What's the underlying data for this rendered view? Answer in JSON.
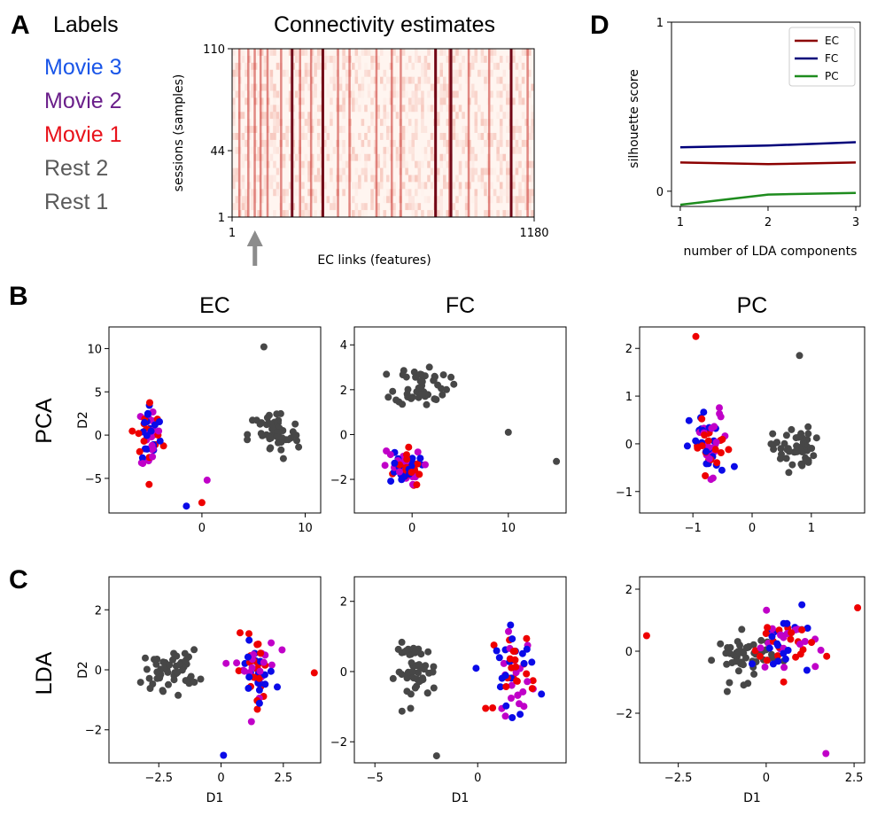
{
  "panel_letters": {
    "a": "A",
    "b": "B",
    "c": "C",
    "d": "D"
  },
  "labels_panel": {
    "title": "Labels",
    "items": [
      {
        "text": "Movie 3",
        "color": "#1a56e8"
      },
      {
        "text": "Movie 2",
        "color": "#6a1f8a"
      },
      {
        "text": "Movie 1",
        "color": "#e8121b"
      },
      {
        "text": "Rest 2",
        "color": "#5a5a5a"
      },
      {
        "text": "Rest 1",
        "color": "#5a5a5a"
      }
    ]
  },
  "row_labels": {
    "pca": "PCA",
    "lda": "LDA"
  },
  "colors": {
    "rest": "#474747",
    "movie1": "#ee0000",
    "movie2": "#c000c8",
    "movie3": "#0a0ae8",
    "arrow": "#8c8c8c"
  },
  "chart_data": [
    {
      "id": "connectivity",
      "type": "heatmap",
      "title": "Connectivity estimates",
      "xlabel": "EC links (features)",
      "ylabel": "sessions (samples)",
      "xticks": [
        "1",
        "1180"
      ],
      "yticks": [
        "110",
        "44",
        "1"
      ],
      "xlim": [
        1,
        1180
      ],
      "ylim": [
        1,
        110
      ],
      "strong_columns": [
        25,
        60,
        85,
        108,
        135,
        188,
        262,
        305,
        350,
        410,
        455,
        560,
        620,
        655,
        790,
        845,
        920,
        1000,
        1085,
        1150
      ],
      "very_strong_columns": [
        230,
        350,
        790,
        850,
        1085
      ],
      "arrow_at_feature": 90
    },
    {
      "id": "silhouette",
      "type": "line",
      "xlabel": "number of LDA components",
      "ylabel": "silhouette score",
      "x": [
        1,
        2,
        3
      ],
      "xlim": [
        0.9,
        3.05
      ],
      "ylim": [
        -0.09,
        1.0
      ],
      "yticks": [
        0,
        1
      ],
      "xticks": [
        1,
        2,
        3
      ],
      "legend_position": "top-right",
      "series": [
        {
          "name": "EC",
          "values": [
            0.17,
            0.16,
            0.17
          ],
          "color": "#8b0000"
        },
        {
          "name": "FC",
          "values": [
            0.26,
            0.27,
            0.29
          ],
          "color": "#00007a"
        },
        {
          "name": "PC",
          "values": [
            -0.08,
            -0.02,
            -0.01
          ],
          "color": "#1e8c1e"
        }
      ]
    },
    {
      "id": "pca-ec",
      "type": "scatter",
      "title": "EC",
      "ylabel": "D2",
      "xlabel": "",
      "xlim": [
        -9,
        11.5
      ],
      "ylim": [
        -9,
        12.5
      ],
      "xticks": [
        0,
        10
      ],
      "yticks": [
        -5,
        0,
        5,
        10
      ],
      "rest_center": [
        7,
        0
      ],
      "rest_spread": [
        2.5,
        3.0
      ],
      "movie_center": [
        -5,
        0
      ],
      "movie_spread": [
        1.2,
        4.0
      ],
      "outliers": [
        [
          -1.5,
          -8.2,
          "movie3"
        ],
        [
          0.5,
          -5.2,
          "movie2"
        ],
        [
          0.0,
          -7.8,
          "movie1"
        ],
        [
          6,
          10.2,
          "rest"
        ]
      ]
    },
    {
      "id": "pca-fc",
      "type": "scatter",
      "title": "FC",
      "ylabel": "",
      "xlabel": "",
      "xlim": [
        -6,
        16
      ],
      "ylim": [
        -3.5,
        4.8
      ],
      "xticks": [
        0,
        10
      ],
      "yticks": [
        -2,
        0,
        2,
        4
      ],
      "rest_center": [
        1,
        2.2
      ],
      "rest_spread": [
        2.8,
        0.9
      ],
      "movie_center": [
        -1,
        -1.5
      ],
      "movie_spread": [
        2.0,
        0.8
      ],
      "outliers": [
        [
          15,
          -1.2,
          "rest"
        ],
        [
          10,
          0.1,
          "rest"
        ]
      ]
    },
    {
      "id": "pca-pc",
      "type": "scatter",
      "title": "PC",
      "ylabel": "",
      "xlabel": "",
      "xlim": [
        -1.9,
        1.9
      ],
      "ylim": [
        -1.45,
        2.45
      ],
      "xticks": [
        -1,
        0,
        1
      ],
      "yticks": [
        -1,
        0,
        1,
        2
      ],
      "rest_center": [
        0.7,
        -0.1
      ],
      "rest_spread": [
        0.35,
        0.45
      ],
      "movie_center": [
        -0.7,
        -0.1
      ],
      "movie_spread": [
        0.35,
        0.8
      ],
      "outliers": [
        [
          -0.95,
          2.25,
          "movie1"
        ],
        [
          0.8,
          1.85,
          "rest"
        ]
      ]
    },
    {
      "id": "lda-ec",
      "type": "scatter",
      "title": "",
      "ylabel": "D2",
      "xlabel": "D1",
      "xlim": [
        -4.5,
        4
      ],
      "ylim": [
        -3.1,
        3.1
      ],
      "xticks": [
        -2.5,
        0.0,
        2.5
      ],
      "yticks": [
        -2,
        0,
        2
      ],
      "rest_center": [
        -2,
        0
      ],
      "rest_spread": [
        1.1,
        0.65
      ],
      "movie_center": [
        1.4,
        0
      ],
      "movie_spread": [
        0.8,
        1.1
      ],
      "outliers": [
        [
          0.1,
          -2.85,
          "movie3"
        ],
        [
          3.8,
          -0.1,
          "movie1"
        ]
      ]
    },
    {
      "id": "lda-fc",
      "type": "scatter",
      "title": "",
      "ylabel": "",
      "xlabel": "D1",
      "xlim": [
        -6,
        4.3
      ],
      "ylim": [
        -2.6,
        2.7
      ],
      "xticks": [
        -5,
        0
      ],
      "yticks": [
        -2,
        0,
        2
      ],
      "rest_center": [
        -3,
        0
      ],
      "rest_spread": [
        1.0,
        0.8
      ],
      "movie_center": [
        1.8,
        0
      ],
      "movie_spread": [
        1.0,
        1.2
      ],
      "outliers": [
        [
          -2,
          -2.4,
          "rest"
        ]
      ]
    },
    {
      "id": "lda-pc",
      "type": "scatter",
      "title": "",
      "ylabel": "",
      "xlabel": "D1",
      "xlim": [
        -3.6,
        2.8
      ],
      "ylim": [
        -3.6,
        2.4
      ],
      "xticks": [
        -2.5,
        0.0,
        2.5
      ],
      "yticks": [
        -2,
        0,
        2
      ],
      "rest_center": [
        -0.6,
        -0.2
      ],
      "rest_spread": [
        0.8,
        0.75
      ],
      "movie_center": [
        0.5,
        0.2
      ],
      "movie_spread": [
        0.9,
        1.0
      ],
      "outliers": [
        [
          -3.4,
          0.5,
          "movie1"
        ],
        [
          2.6,
          1.4,
          "movie1"
        ],
        [
          1.7,
          -3.3,
          "movie2"
        ]
      ]
    }
  ]
}
